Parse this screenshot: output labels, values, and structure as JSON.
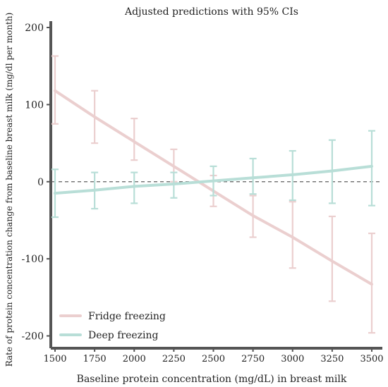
{
  "chart_data": {
    "type": "line",
    "title": "Adjusted predictions with 95% CIs",
    "xlabel": "Baseline protein concentration (mg/dL) in breast milk",
    "ylabel": "Rate of protein concentration change from baseline breast milk (mg/dl per month)",
    "x": [
      1500,
      1750,
      2000,
      2250,
      2500,
      2750,
      3000,
      3250,
      3500
    ],
    "x_ticks": [
      "1500",
      "1750",
      "2000",
      "2250",
      "2500",
      "2750",
      "3000",
      "3250",
      "3500"
    ],
    "y_ticks": [
      "200",
      "100",
      "0",
      "-100",
      "-200"
    ],
    "xlim": [
      1500,
      3500
    ],
    "ylim": [
      -205,
      200
    ],
    "reference_line_y": 0,
    "grid": false,
    "legend_position": "bottom-left",
    "series": [
      {
        "name": "Fridge freezing",
        "color": "#ebcfcf",
        "values": [
          118,
          84,
          52,
          20,
          -12,
          -44,
          -72,
          -103,
          -133
        ],
        "ci_low": [
          75,
          50,
          28,
          0,
          -32,
          -72,
          -112,
          -155,
          -196
        ],
        "ci_high": [
          163,
          118,
          82,
          42,
          8,
          -18,
          -26,
          -45,
          -67
        ]
      },
      {
        "name": "Deep freezing",
        "color": "#b8ded7",
        "values": [
          -15,
          -11,
          -6,
          -3,
          1,
          5,
          9,
          14,
          20
        ],
        "ci_low": [
          -46,
          -35,
          -28,
          -21,
          -18,
          -16,
          -24,
          -28,
          -31
        ],
        "ci_high": [
          16,
          12,
          12,
          12,
          20,
          30,
          40,
          54,
          66
        ]
      }
    ]
  }
}
